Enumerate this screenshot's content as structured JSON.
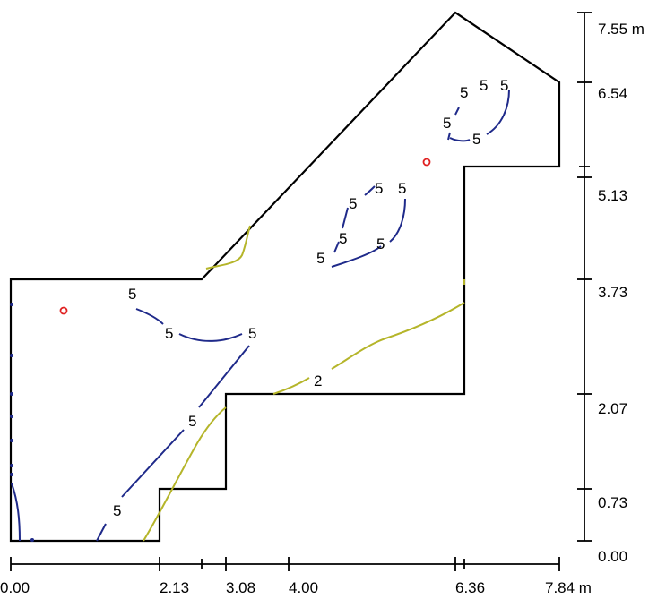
{
  "colors": {
    "outline": "#000000",
    "contour_5": "#1f2a8a",
    "contour_2": "#b5b52a",
    "marker": "#e02020"
  },
  "x_axis": {
    "unit": "m",
    "ticks": [
      "0.00",
      "2.13",
      "3.08",
      "4.00",
      "6.36",
      "7.84 m"
    ]
  },
  "y_axis": {
    "unit": "m",
    "ticks": [
      "7.55 m",
      "6.54",
      "5.13",
      "3.73",
      "2.07",
      "0.73",
      "0.00"
    ]
  },
  "contour_levels": {
    "five": "5",
    "two": "2"
  }
}
